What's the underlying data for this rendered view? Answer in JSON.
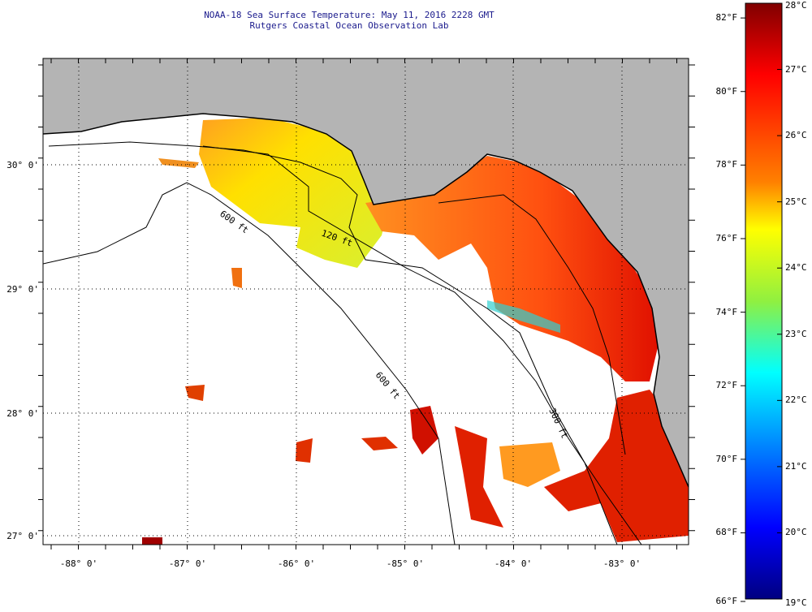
{
  "header": {
    "title": "NOAA-18 Sea Surface Temperature:  May 11, 2016 2228 GMT",
    "subtitle": "Rutgers Coastal Ocean Observation Lab"
  },
  "map": {
    "lon_ticks": [
      "-88° 0'",
      "-87° 0'",
      "-86° 0'",
      "-85° 0'",
      "-84° 0'",
      "-83° 0'"
    ],
    "lat_ticks": [
      "30° 0'",
      "29° 0'",
      "28° 0'",
      "27° 0'"
    ],
    "contour_labels": [
      "600 ft",
      "120 ft",
      "600 ft",
      "300 ft"
    ],
    "colors": {
      "land": "#b4b4b4",
      "no_data": "#ffffff"
    }
  },
  "colorbar": {
    "fahrenheit": [
      "82°F",
      "80°F",
      "78°F",
      "76°F",
      "74°F",
      "72°F",
      "70°F",
      "68°F",
      "66°F"
    ],
    "celsius": [
      "28°C",
      "27°C",
      "26°C",
      "25°C",
      "24°C",
      "23°C",
      "22°C",
      "21°C",
      "20°C",
      "19°C"
    ],
    "range_c": [
      19,
      28
    ],
    "range_f": [
      66,
      82
    ]
  }
}
